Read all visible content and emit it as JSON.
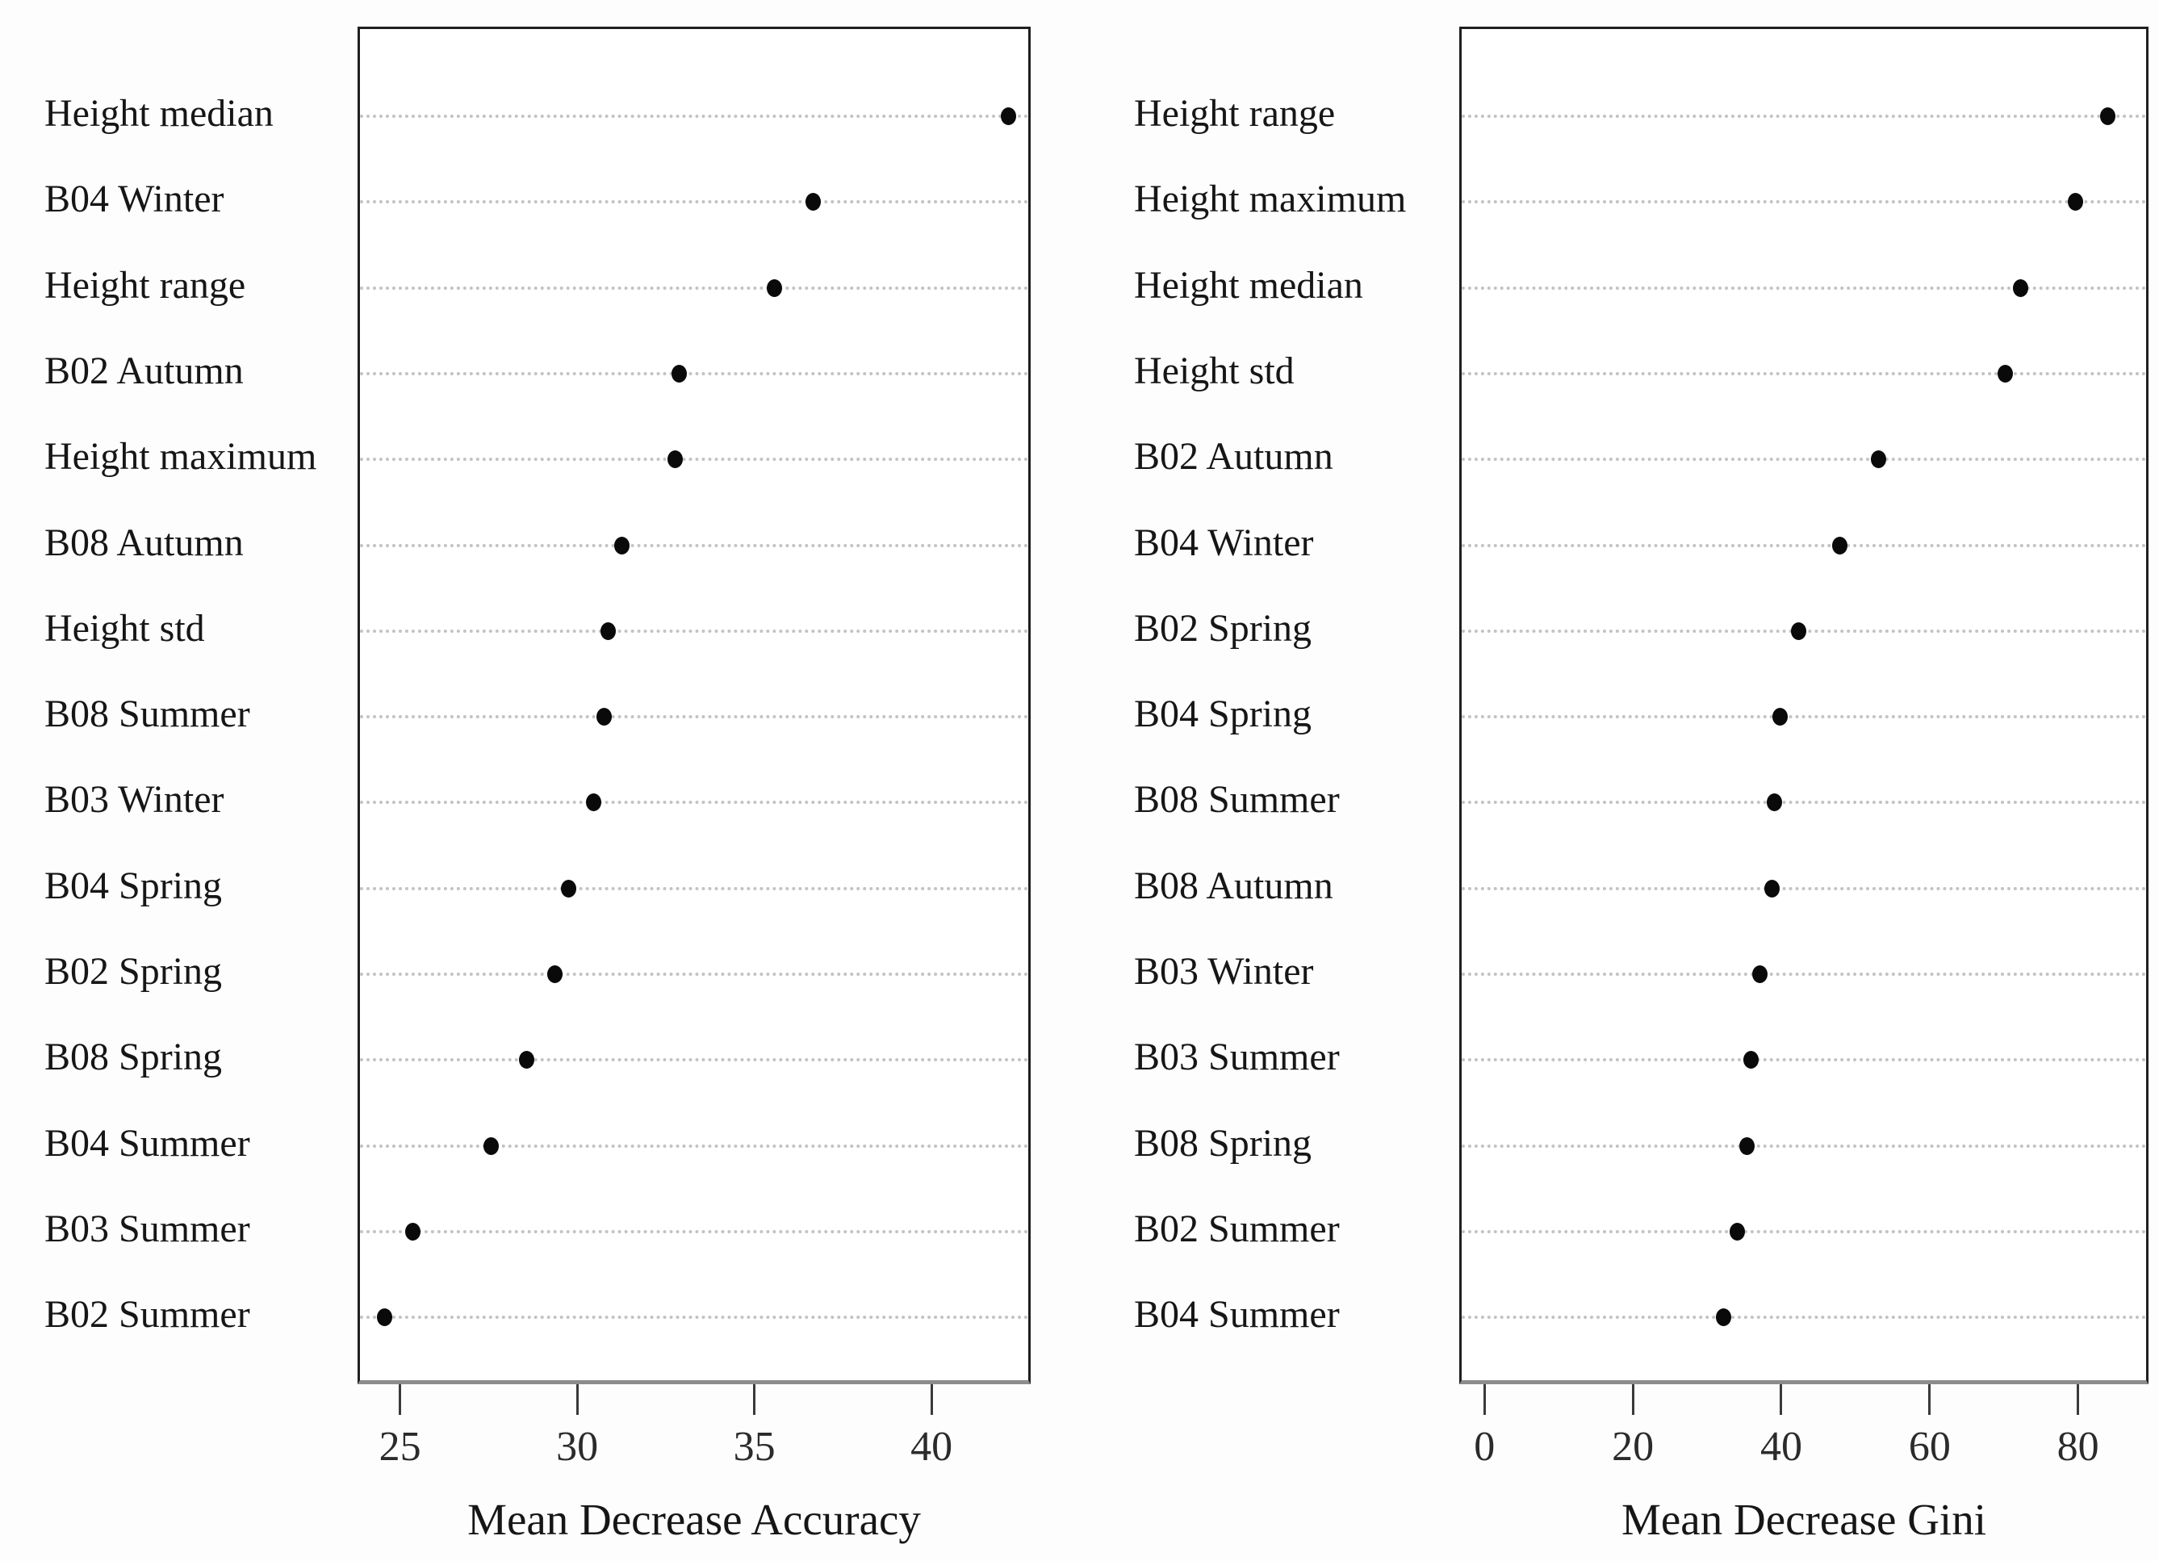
{
  "chart_data": [
    {
      "type": "scatter",
      "subtype": "dot-plot",
      "orientation": "horizontal",
      "xlabel": "Mean Decrease Accuracy",
      "categories": [
        "Height median",
        "B04 Winter",
        "Height range",
        "B02 Autumn",
        "Height maximum",
        "B08 Autumn",
        "Height std",
        "B08 Summer",
        "B03 Winter",
        "B04 Spring",
        "B02 Spring",
        "B08 Spring",
        "B04 Summer",
        "B03 Summer",
        "B02 Summer"
      ],
      "values": [
        42.1,
        36.6,
        35.5,
        32.8,
        32.7,
        31.2,
        30.8,
        30.7,
        30.4,
        29.7,
        29.3,
        28.5,
        27.5,
        25.3,
        24.5
      ],
      "xticks": [
        25,
        30,
        35,
        40
      ],
      "xlim": [
        23.8,
        42.8
      ],
      "grid": "horizontal-dotted",
      "legend": "none"
    },
    {
      "type": "scatter",
      "subtype": "dot-plot",
      "orientation": "horizontal",
      "xlabel": "Mean Decrease Gini",
      "categories": [
        "Height range",
        "Height maximum",
        "Height median",
        "Height std",
        "B02 Autumn",
        "B04 Winter",
        "B02 Spring",
        "B04 Spring",
        "B08 Summer",
        "B08 Autumn",
        "B03 Winter",
        "B03 Summer",
        "B08 Spring",
        "B02 Summer",
        "B04 Summer"
      ],
      "values": [
        83.7,
        79.3,
        71.9,
        69.9,
        52.8,
        47.6,
        42.0,
        39.5,
        38.8,
        38.4,
        36.8,
        35.6,
        35.1,
        33.8,
        31.9
      ],
      "xticks": [
        0,
        20,
        40,
        60,
        80
      ],
      "xlim": [
        -3.4,
        89.5
      ],
      "grid": "horizontal-dotted",
      "legend": "none"
    }
  ],
  "colors": {
    "point": "#0a0a0a",
    "gridline": "#c3c3c3",
    "box_border": "#1f1f1f",
    "axis_bottom_line": "#8c8c8c",
    "text": "#161616"
  }
}
